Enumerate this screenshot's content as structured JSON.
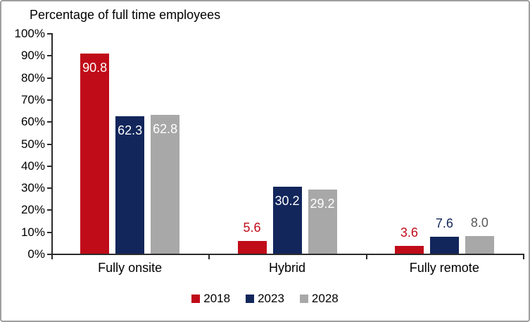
{
  "chart_data": {
    "type": "bar",
    "title": "Percentage of full time employees",
    "categories": [
      "Fully onsite",
      "Hybrid",
      "Fully remote"
    ],
    "series": [
      {
        "name": "2018",
        "color": "#c00b18",
        "label_color": "#c00b18",
        "values": [
          90.8,
          5.6,
          3.6
        ]
      },
      {
        "name": "2023",
        "color": "#12265b",
        "label_color": "#12265b",
        "values": [
          62.3,
          30.2,
          7.6
        ]
      },
      {
        "name": "2028",
        "color": "#a8a8a8",
        "label_color": "#595959",
        "values": [
          62.8,
          29.2,
          8.0
        ]
      }
    ],
    "ylim": [
      0,
      100
    ],
    "ytick_labels": [
      "0%",
      "10%",
      "20%",
      "30%",
      "40%",
      "50%",
      "60%",
      "70%",
      "80%",
      "90%",
      "100%"
    ],
    "xlabel": "",
    "ylabel": "",
    "grid": false,
    "legend_position": "bottom",
    "inside_label_color": "#ffffff",
    "value_decimals": 1,
    "inside_label_threshold": 20
  },
  "colors": {
    "axis": "#2b2b2b",
    "border": "#9e9e9e",
    "text": "#000000"
  }
}
